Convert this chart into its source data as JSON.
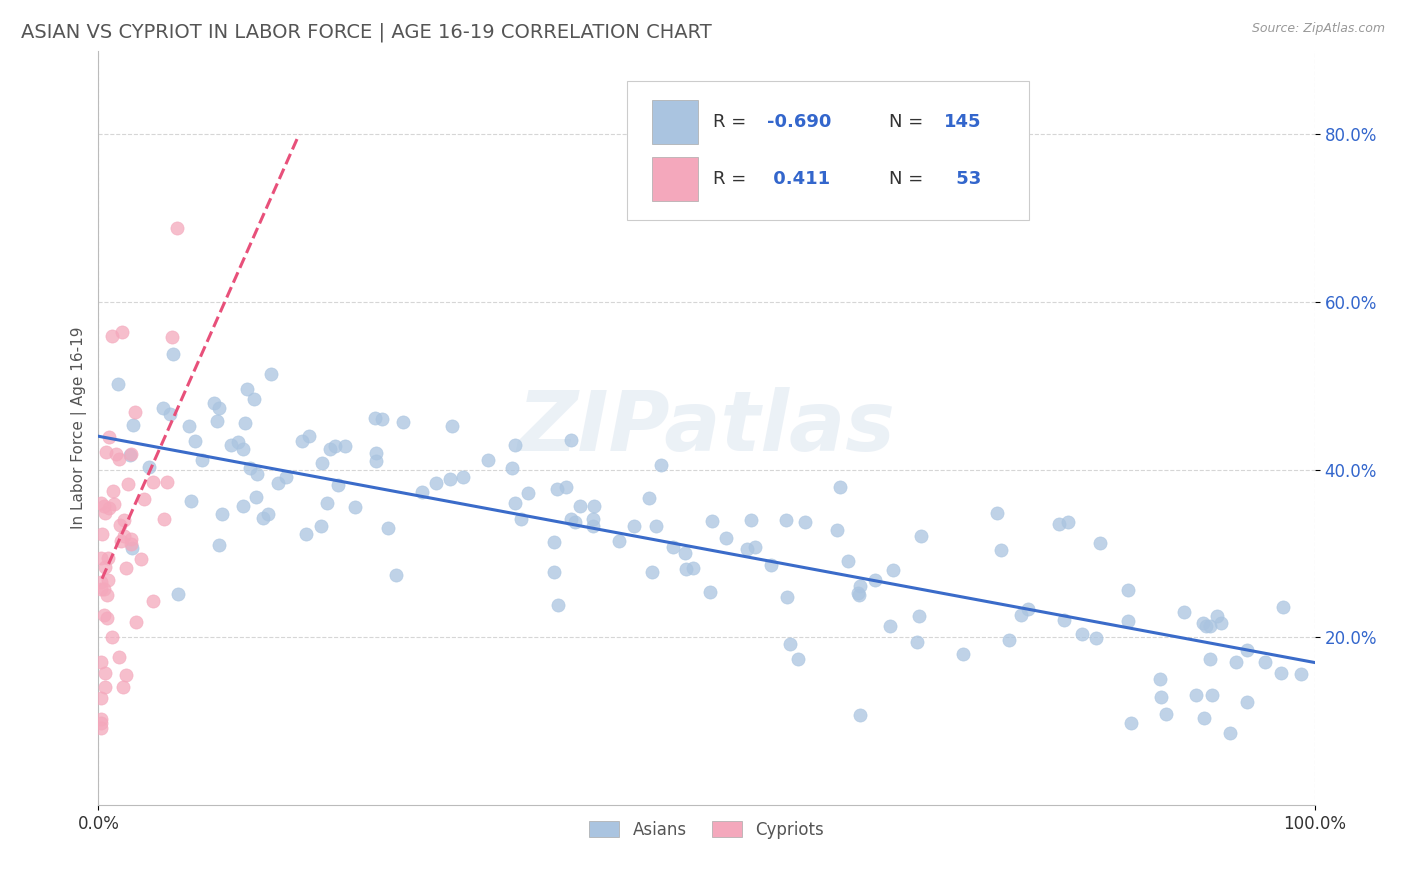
{
  "title": "ASIAN VS CYPRIOT IN LABOR FORCE | AGE 16-19 CORRELATION CHART",
  "source": "Source: ZipAtlas.com",
  "ylabel": "In Labor Force | Age 16-19",
  "xlim": [
    0.0,
    1.0
  ],
  "ylim": [
    0.0,
    0.9
  ],
  "x_ticks": [
    0.0,
    1.0
  ],
  "x_tick_labels": [
    "0.0%",
    "100.0%"
  ],
  "y_ticks": [
    0.2,
    0.4,
    0.6,
    0.8
  ],
  "y_tick_labels": [
    "20.0%",
    "40.0%",
    "60.0%",
    "80.0%"
  ],
  "legend_r_asian": "-0.690",
  "legend_n_asian": "145",
  "legend_r_cypriot": "0.411",
  "legend_n_cypriot": "53",
  "asian_color": "#aac4e0",
  "cypriot_color": "#f4a8bc",
  "asian_line_color": "#3a6bc9",
  "cypriot_line_color": "#e8507a",
  "watermark": "ZIPatlas",
  "title_color": "#555555",
  "legend_label_color": "#333333",
  "legend_value_color": "#3366cc",
  "background_color": "#ffffff",
  "grid_color": "#cccccc",
  "ytick_color": "#3366cc",
  "xtick_color": "#333333",
  "asian_trendline_start_y": 0.44,
  "asian_trendline_end_y": 0.17,
  "cypriot_trendline_x0": 0.003,
  "cypriot_trendline_x1": 0.165,
  "cypriot_trendline_y0": 0.27,
  "cypriot_trendline_y1": 0.8
}
